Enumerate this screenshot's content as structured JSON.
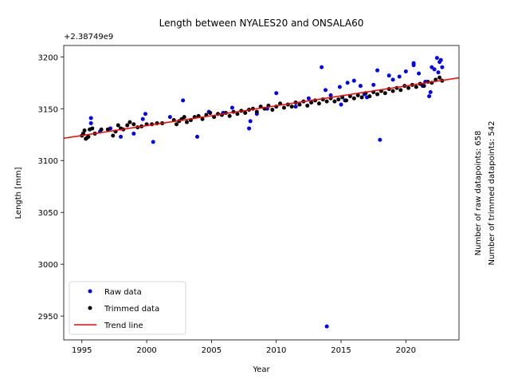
{
  "chart_data": {
    "type": "scatter",
    "title": "Length between NYALES20 and ONSALA60",
    "xlabel": "Year",
    "ylabel": "Length [mm]",
    "y_offset_label": "+2.38749e9",
    "xlim": [
      1993.6,
      2024.1
    ],
    "ylim": [
      2927,
      3211
    ],
    "x_ticks": [
      1995,
      2000,
      2005,
      2010,
      2015,
      2020
    ],
    "y_ticks": [
      2950,
      3000,
      3050,
      3100,
      3150,
      3200
    ],
    "grid": false,
    "legend_position": "lower-left",
    "side_annotations": [
      "Number of raw datapoints: 658",
      "Number of trimmed datapoints: 542"
    ],
    "series": [
      {
        "name": "Raw data",
        "color": "#0000ff",
        "marker": "dot",
        "points": [
          [
            1995.7,
            3141
          ],
          [
            1995.7,
            3136
          ],
          [
            1999.7,
            3140
          ],
          [
            1999.9,
            3145
          ],
          [
            2000.5,
            3118
          ],
          [
            2002.8,
            3158
          ],
          [
            2003.9,
            3123
          ],
          [
            2006.6,
            3151
          ],
          [
            2007.9,
            3131
          ],
          [
            2008.0,
            3138
          ],
          [
            2008.5,
            3145
          ],
          [
            2010.0,
            3165
          ],
          [
            2013.5,
            3190
          ],
          [
            2013.8,
            3168
          ],
          [
            2014.2,
            3163
          ],
          [
            2013.9,
            2940
          ],
          [
            2015.0,
            3154
          ],
          [
            2015.5,
            3175
          ],
          [
            2016.0,
            3177
          ],
          [
            2016.5,
            3172
          ],
          [
            2017.0,
            3161
          ],
          [
            2017.8,
            3187
          ],
          [
            2018.0,
            3120
          ],
          [
            2018.7,
            3182
          ],
          [
            2019.5,
            3181
          ],
          [
            2020.0,
            3186
          ],
          [
            2020.6,
            3192
          ],
          [
            2020.6,
            3194
          ],
          [
            2021.3,
            3172
          ],
          [
            2021.5,
            3176
          ],
          [
            2021.8,
            3162
          ],
          [
            2022.0,
            3190
          ],
          [
            2022.2,
            3188
          ],
          [
            2022.4,
            3199
          ],
          [
            2022.6,
            3195
          ],
          [
            2022.7,
            3197
          ],
          [
            2022.8,
            3190
          ],
          [
            2022.5,
            3185
          ],
          [
            2021.9,
            3166
          ],
          [
            2021.0,
            3184
          ],
          [
            2019.0,
            3178
          ],
          [
            2017.5,
            3173
          ],
          [
            2016.8,
            3164
          ],
          [
            2015.3,
            3158
          ],
          [
            2014.9,
            3171
          ],
          [
            2012.5,
            3160
          ],
          [
            2011.5,
            3152
          ],
          [
            2009.3,
            3150
          ],
          [
            2005.9,
            3146
          ],
          [
            2004.8,
            3147
          ],
          [
            2001.8,
            3142
          ],
          [
            1998.0,
            3123
          ],
          [
            1999.0,
            3126
          ],
          [
            1997.2,
            3131
          ],
          [
            1996.4,
            3128
          ]
        ]
      },
      {
        "name": "Trimmed data",
        "color": "#000000",
        "marker": "dot",
        "points": [
          [
            1995.0,
            3124
          ],
          [
            1995.1,
            3126
          ],
          [
            1995.2,
            3129
          ],
          [
            1995.3,
            3121
          ],
          [
            1995.4,
            3122
          ],
          [
            1995.5,
            3123
          ],
          [
            1995.6,
            3130
          ],
          [
            1995.8,
            3131
          ],
          [
            1996.0,
            3126
          ],
          [
            1996.5,
            3130
          ],
          [
            1997.0,
            3130
          ],
          [
            1997.4,
            3124
          ],
          [
            1997.6,
            3128
          ],
          [
            1997.8,
            3134
          ],
          [
            1998.0,
            3131
          ],
          [
            1998.2,
            3130
          ],
          [
            1998.5,
            3134
          ],
          [
            1998.7,
            3137
          ],
          [
            1999.0,
            3135
          ],
          [
            1999.3,
            3132
          ],
          [
            1999.6,
            3133
          ],
          [
            2000.0,
            3135
          ],
          [
            2000.4,
            3135
          ],
          [
            2000.8,
            3136
          ],
          [
            2001.2,
            3136
          ],
          [
            2002.1,
            3139
          ],
          [
            2002.3,
            3135
          ],
          [
            2002.5,
            3138
          ],
          [
            2002.7,
            3140
          ],
          [
            2002.9,
            3142
          ],
          [
            2003.1,
            3137
          ],
          [
            2003.4,
            3139
          ],
          [
            2003.7,
            3142
          ],
          [
            2004.0,
            3143
          ],
          [
            2004.3,
            3140
          ],
          [
            2004.6,
            3144
          ],
          [
            2004.9,
            3146
          ],
          [
            2005.2,
            3142
          ],
          [
            2005.5,
            3145
          ],
          [
            2005.8,
            3144
          ],
          [
            2006.1,
            3146
          ],
          [
            2006.4,
            3143
          ],
          [
            2006.7,
            3147
          ],
          [
            2007.0,
            3145
          ],
          [
            2007.3,
            3148
          ],
          [
            2007.6,
            3146
          ],
          [
            2007.9,
            3149
          ],
          [
            2008.2,
            3150
          ],
          [
            2008.5,
            3147
          ],
          [
            2008.8,
            3152
          ],
          [
            2009.1,
            3150
          ],
          [
            2009.4,
            3153
          ],
          [
            2009.7,
            3149
          ],
          [
            2010.0,
            3152
          ],
          [
            2010.3,
            3155
          ],
          [
            2010.6,
            3151
          ],
          [
            2010.9,
            3154
          ],
          [
            2011.2,
            3152
          ],
          [
            2011.5,
            3156
          ],
          [
            2011.8,
            3154
          ],
          [
            2012.1,
            3157
          ],
          [
            2012.4,
            3153
          ],
          [
            2012.7,
            3156
          ],
          [
            2013.0,
            3158
          ],
          [
            2013.3,
            3155
          ],
          [
            2013.6,
            3159
          ],
          [
            2013.9,
            3157
          ],
          [
            2014.2,
            3160
          ],
          [
            2014.5,
            3157
          ],
          [
            2014.8,
            3159
          ],
          [
            2015.1,
            3161
          ],
          [
            2015.4,
            3158
          ],
          [
            2015.7,
            3162
          ],
          [
            2016.0,
            3160
          ],
          [
            2016.3,
            3163
          ],
          [
            2016.6,
            3161
          ],
          [
            2016.9,
            3165
          ],
          [
            2017.2,
            3162
          ],
          [
            2017.5,
            3166
          ],
          [
            2017.8,
            3164
          ],
          [
            2018.1,
            3167
          ],
          [
            2018.4,
            3165
          ],
          [
            2018.7,
            3169
          ],
          [
            2019.0,
            3167
          ],
          [
            2019.3,
            3170
          ],
          [
            2019.6,
            3168
          ],
          [
            2019.9,
            3172
          ],
          [
            2020.2,
            3170
          ],
          [
            2020.5,
            3173
          ],
          [
            2020.8,
            3171
          ],
          [
            2021.1,
            3174
          ],
          [
            2021.4,
            3172
          ],
          [
            2021.7,
            3176
          ],
          [
            2022.0,
            3175
          ],
          [
            2022.3,
            3178
          ],
          [
            2022.6,
            3180
          ],
          [
            2022.8,
            3177
          ]
        ]
      },
      {
        "name": "Trend line",
        "color": "#ff0000",
        "marker": "line",
        "points": [
          [
            1993.6,
            3121.5
          ],
          [
            2024.1,
            3179.8
          ]
        ]
      }
    ]
  }
}
